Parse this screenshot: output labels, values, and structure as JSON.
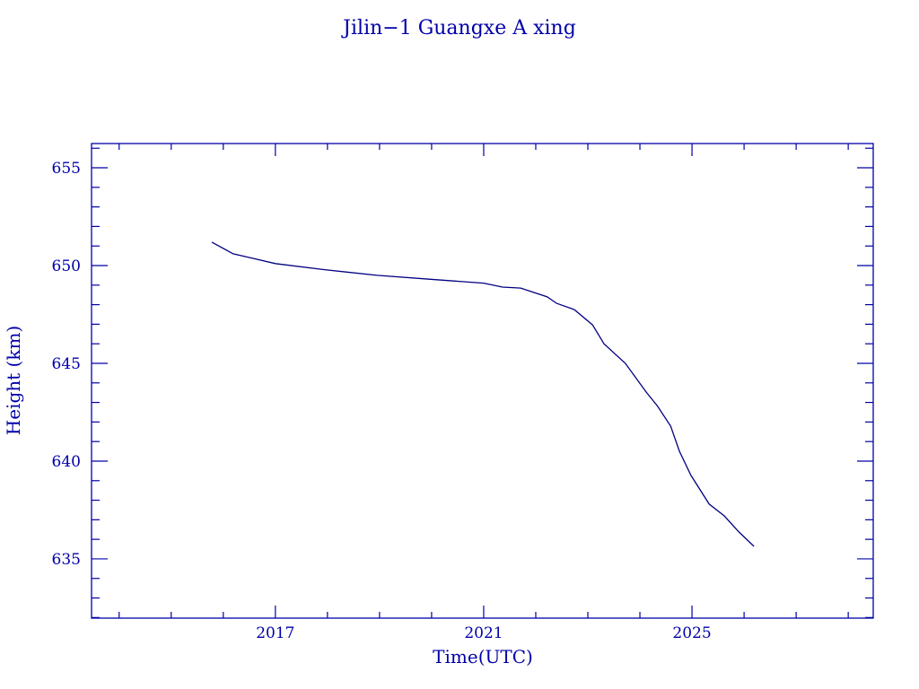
{
  "chart_data": {
    "type": "line",
    "title": "Jilin−1 Guangxe A xing",
    "xlabel": "Time(UTC)",
    "ylabel": "Height (km)",
    "xlim": [
      2013.47,
      2028.48
    ],
    "ylim": [
      631.97,
      656.24
    ],
    "x_ticks": [
      2017,
      2021,
      2025
    ],
    "x_tick_labels": [
      "2017",
      "2021",
      "2025"
    ],
    "x_minor_step": 1,
    "y_ticks": [
      635,
      640,
      645,
      650,
      655
    ],
    "y_tick_labels": [
      "635",
      "640",
      "645",
      "650",
      "655"
    ],
    "y_minor_step": 1,
    "grid": false,
    "axis_color": "#0000a8",
    "line_color": "#000080",
    "series": [
      {
        "name": "Height",
        "x": [
          2015.78,
          2016.19,
          2016.6,
          2017.0,
          2017.91,
          2018.95,
          2019.98,
          2021.0,
          2021.36,
          2021.71,
          2022.22,
          2022.4,
          2022.74,
          2023.09,
          2023.31,
          2023.72,
          2024.12,
          2024.34,
          2024.59,
          2024.76,
          2024.98,
          2025.33,
          2025.62,
          2025.9,
          2026.19
        ],
        "y": [
          651.2,
          650.6,
          650.35,
          650.1,
          649.8,
          649.5,
          649.3,
          649.1,
          648.9,
          648.85,
          648.4,
          648.07,
          647.75,
          646.97,
          646.0,
          645.0,
          643.53,
          642.8,
          641.79,
          640.5,
          639.27,
          637.8,
          637.2,
          636.38,
          635.64
        ]
      }
    ]
  }
}
